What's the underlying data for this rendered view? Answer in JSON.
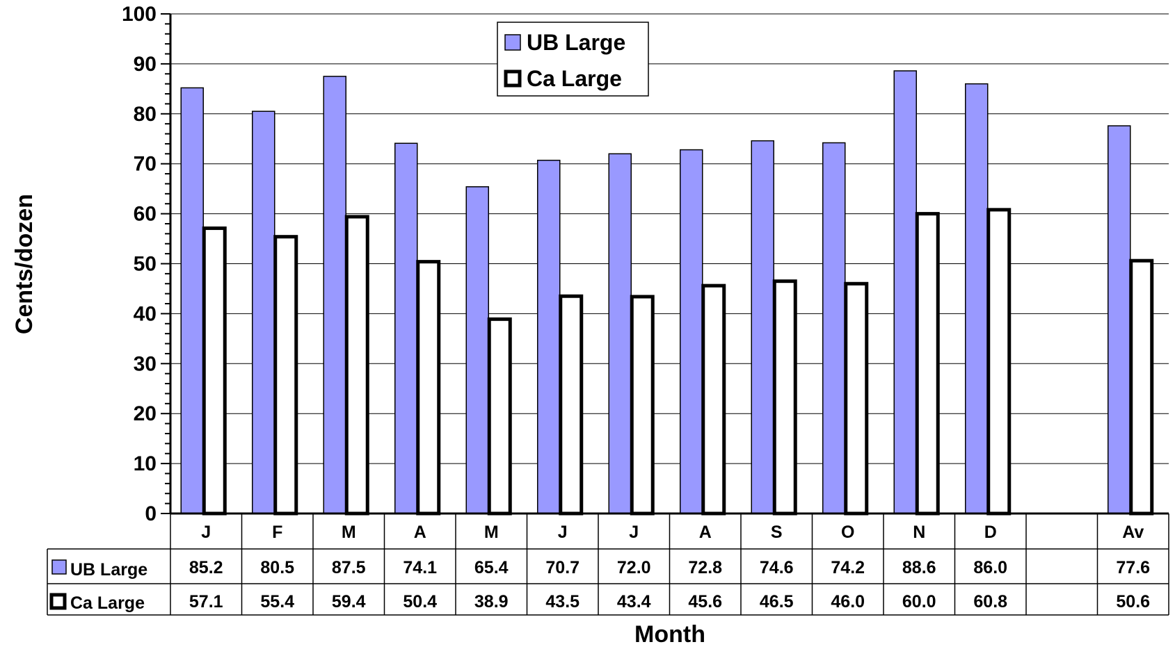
{
  "chart_data": {
    "type": "bar",
    "xlabel": "Month",
    "ylabel": "Cents/dozen",
    "ylim": [
      0,
      100
    ],
    "yticks": [
      0,
      10,
      20,
      30,
      40,
      50,
      60,
      70,
      80,
      90,
      100
    ],
    "grid": true,
    "legend_position": "top-center",
    "categories": [
      "J",
      "F",
      "M",
      "A",
      "M",
      "J",
      "J",
      "A",
      "S",
      "O",
      "N",
      "D",
      "",
      "Av"
    ],
    "series": [
      {
        "name": "UB Large",
        "color": "#9999ff",
        "values": [
          85.2,
          80.5,
          87.5,
          74.1,
          65.4,
          70.7,
          72.0,
          72.8,
          74.6,
          74.2,
          88.6,
          86.0,
          null,
          77.6
        ],
        "labels": [
          "85.2",
          "80.5",
          "87.5",
          "74.1",
          "65.4",
          "70.7",
          "72.0",
          "72.8",
          "74.6",
          "74.2",
          "88.6",
          "86.0",
          "",
          "77.6"
        ]
      },
      {
        "name": "Ca Large",
        "color": "#ffffff",
        "values": [
          57.1,
          55.4,
          59.4,
          50.4,
          38.9,
          43.5,
          43.4,
          45.6,
          46.5,
          46.0,
          60.0,
          60.8,
          null,
          50.6
        ],
        "labels": [
          "57.1",
          "55.4",
          "59.4",
          "50.4",
          "38.9",
          "43.5",
          "43.4",
          "45.6",
          "46.5",
          "46.0",
          "60.0",
          "60.8",
          "",
          "50.6"
        ]
      }
    ]
  }
}
